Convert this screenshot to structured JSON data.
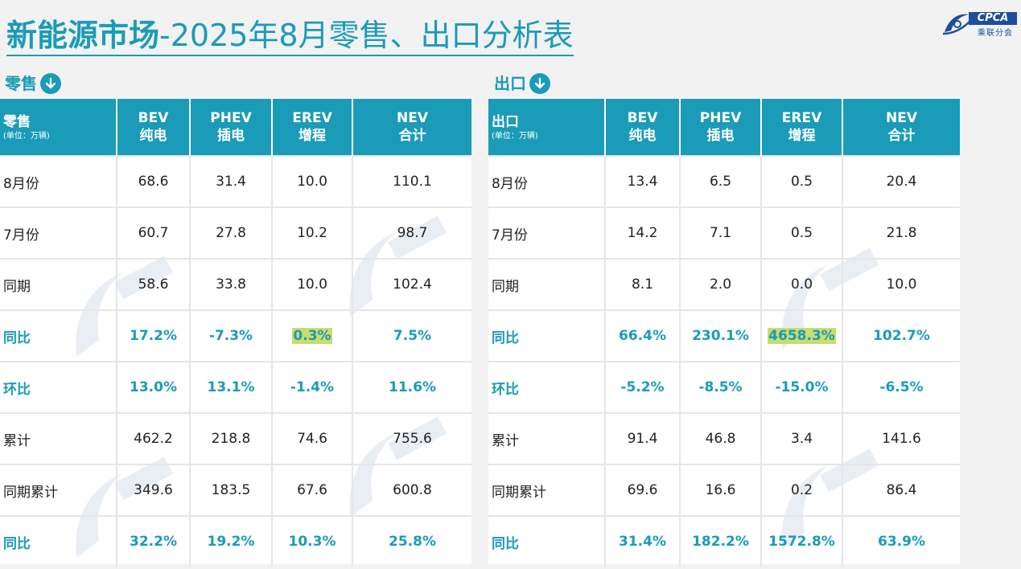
{
  "title": {
    "bold": "新能源市场",
    "rest": "-2025年8月零售、出口分析表"
  },
  "logo": {
    "text": "CPCA",
    "sub": "乘联分会"
  },
  "colors": {
    "accent": "#1a9bb8",
    "highlight": "#c9dc6e"
  },
  "retail": {
    "heading": "零售",
    "heading_icon": "down-arrow-circle-icon",
    "corner_label": "零售",
    "unit": "(单位：万辆)",
    "columns": [
      {
        "code": "BEV",
        "name": "纯电"
      },
      {
        "code": "PHEV",
        "name": "插电"
      },
      {
        "code": "EREV",
        "name": "增程"
      },
      {
        "code": "NEV",
        "name": "合计"
      }
    ],
    "rows": [
      {
        "label": "8月份",
        "values": [
          "68.6",
          "31.4",
          "10.0",
          "110.1"
        ],
        "pct": false
      },
      {
        "label": "7月份",
        "values": [
          "60.7",
          "27.8",
          "10.2",
          "98.7"
        ],
        "pct": false
      },
      {
        "label": "同期",
        "values": [
          "58.6",
          "33.8",
          "10.0",
          "102.4"
        ],
        "pct": false
      },
      {
        "label": "同比",
        "values": [
          "17.2%",
          "-7.3%",
          "0.3%",
          "7.5%"
        ],
        "pct": true,
        "highlight": 2
      },
      {
        "label": "环比",
        "values": [
          "13.0%",
          "13.1%",
          "-1.4%",
          "11.6%"
        ],
        "pct": true
      },
      {
        "label": "累计",
        "values": [
          "462.2",
          "218.8",
          "74.6",
          "755.6"
        ],
        "pct": false
      },
      {
        "label": "同期累计",
        "values": [
          "349.6",
          "183.5",
          "67.6",
          "600.8"
        ],
        "pct": false
      },
      {
        "label": "同比",
        "values": [
          "32.2%",
          "19.2%",
          "10.3%",
          "25.8%"
        ],
        "pct": true
      }
    ]
  },
  "export": {
    "heading": "出口",
    "heading_icon": "down-arrow-circle-icon",
    "corner_label": "出口",
    "unit": "(单位：万辆)",
    "columns": [
      {
        "code": "BEV",
        "name": "纯电"
      },
      {
        "code": "PHEV",
        "name": "插电"
      },
      {
        "code": "EREV",
        "name": "增程"
      },
      {
        "code": "NEV",
        "name": "合计"
      }
    ],
    "rows": [
      {
        "label": "8月份",
        "values": [
          "13.4",
          "6.5",
          "0.5",
          "20.4"
        ],
        "pct": false
      },
      {
        "label": "7月份",
        "values": [
          "14.2",
          "7.1",
          "0.5",
          "21.8"
        ],
        "pct": false
      },
      {
        "label": "同期",
        "values": [
          "8.1",
          "2.0",
          "0.0",
          "10.0"
        ],
        "pct": false
      },
      {
        "label": "同比",
        "values": [
          "66.4%",
          "230.1%",
          "4658.3%",
          "102.7%"
        ],
        "pct": true,
        "highlight": 2
      },
      {
        "label": "环比",
        "values": [
          "-5.2%",
          "-8.5%",
          "-15.0%",
          "-6.5%"
        ],
        "pct": true
      },
      {
        "label": "累计",
        "values": [
          "91.4",
          "46.8",
          "3.4",
          "141.6"
        ],
        "pct": false
      },
      {
        "label": "同期累计",
        "values": [
          "69.6",
          "16.6",
          "0.2",
          "86.4"
        ],
        "pct": false
      },
      {
        "label": "同比",
        "values": [
          "31.4%",
          "182.2%",
          "1572.8%",
          "63.9%"
        ],
        "pct": true
      }
    ]
  }
}
